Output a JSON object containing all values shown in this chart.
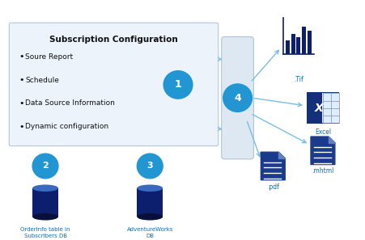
{
  "bg_color": "#ffffff",
  "box_color": "#edf3fb",
  "box_edge_color": "#b0c8dc",
  "circle_color": "#2196d3",
  "arrow_color": "#7bbfe0",
  "db_body_color": "#0c1f6e",
  "db_top_color": "#3a6abf",
  "db_bot_color": "#080f3a",
  "doc_body_color": "#1a3a8c",
  "doc_fold_color": "#6080c0",
  "doc_line_color": "#ffffff",
  "text_color_blue": "#0070c0",
  "title": "Subscription Configuration",
  "bullets": [
    "Soure Report",
    "Schedule",
    "Data Source Information",
    "Dynamic configuration"
  ],
  "label_db1": "OrderInfo table in\nSubscribers DB",
  "label_db2": "AdventureWorks\nDB",
  "label_tif": ".Tif",
  "label_excel": "Excel",
  "label_mhtml": ".mhtml",
  "label_pdf": ".pdf"
}
